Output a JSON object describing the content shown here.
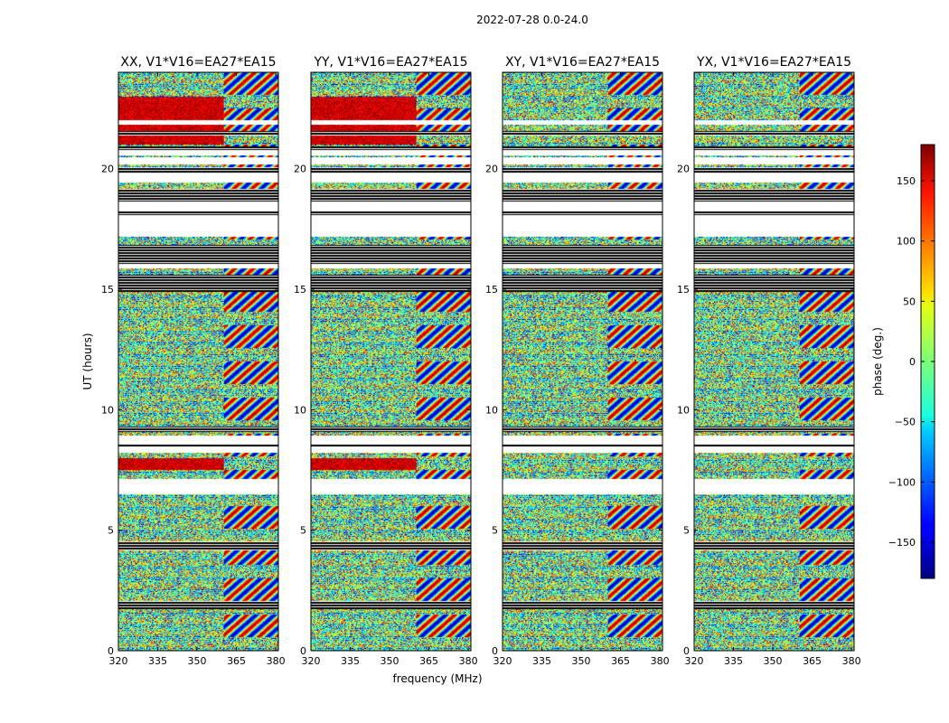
{
  "figure": {
    "suptitle": "2022-07-28 0.0-24.0"
  },
  "chart_data": {
    "type": "heatmap",
    "title": "2022-07-28 0.0-24.0",
    "xlabel": "frequency (MHz)",
    "ylabel": "UT (hours)",
    "xlim": [
      320,
      381
    ],
    "ylim": [
      0,
      24
    ],
    "x_ticks": [
      "320",
      "335",
      "350",
      "365",
      "380"
    ],
    "y_ticks": [
      "0",
      "5",
      "10",
      "15",
      "20"
    ],
    "panels": [
      {
        "name": "xx",
        "title": "XX, V1*V16=EA27*EA15"
      },
      {
        "name": "yy",
        "title": "YY, V1*V16=EA27*EA15"
      },
      {
        "name": "xy",
        "title": "XY, V1*V16=EA27*EA15"
      },
      {
        "name": "yx",
        "title": "YX, V1*V16=EA27*EA15"
      }
    ],
    "colorbar": {
      "label": "phase (deg.)",
      "range": [
        -180,
        180
      ],
      "ticks": [
        "150",
        "100",
        "50",
        "0",
        "−50",
        "−100",
        "−150"
      ],
      "colormap": "jet"
    },
    "colors": {
      "flagged_band": "#000000",
      "gap": "#ffffff"
    }
  }
}
